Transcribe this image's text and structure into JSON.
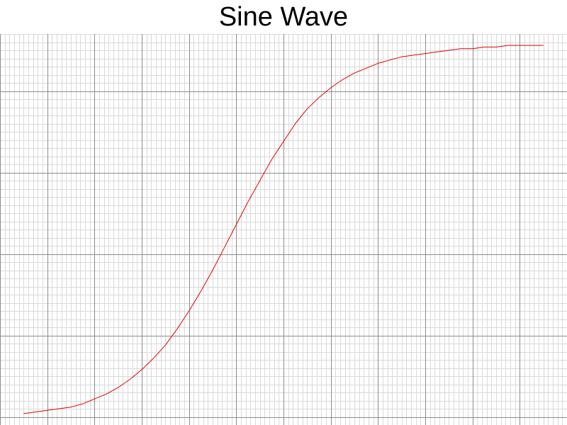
{
  "chart_data": {
    "type": "line",
    "title": "Sine Wave",
    "xlabel": "",
    "ylabel": "",
    "grid": true,
    "xlim": [
      -5,
      7
    ],
    "ylim": [
      -0.55,
      1.85
    ],
    "series": [
      {
        "x": [
          -4.5,
          -4.25,
          -4,
          -3.75,
          -3.5,
          -3.25,
          -3,
          -2.75,
          -2.5,
          -2.25,
          -2,
          -1.75,
          -1.5,
          -1.25,
          -1,
          -0.75,
          -0.5,
          -0.25,
          0,
          0.25,
          0.5,
          0.75,
          1,
          1.25,
          1.5,
          1.75,
          2,
          2.25,
          2.5,
          2.75,
          3,
          3.25,
          3.5,
          3.75,
          4,
          4.25,
          4.5,
          4.75,
          5,
          5.25,
          5.5,
          5.75,
          6,
          6.25,
          6.5
        ],
        "y": [
          -0.48,
          -0.47,
          -0.46,
          -0.45,
          -0.44,
          -0.42,
          -0.39,
          -0.36,
          -0.32,
          -0.27,
          -0.21,
          -0.14,
          -0.06,
          0.04,
          0.15,
          0.27,
          0.4,
          0.54,
          0.68,
          0.82,
          0.95,
          1.08,
          1.19,
          1.3,
          1.39,
          1.46,
          1.52,
          1.57,
          1.61,
          1.64,
          1.67,
          1.69,
          1.71,
          1.72,
          1.73,
          1.74,
          1.75,
          1.76,
          1.76,
          1.77,
          1.77,
          1.78,
          1.78,
          1.78,
          1.78
        ],
        "color": "#e00000"
      }
    ],
    "grid_color_major": "#8c8c8c",
    "grid_color_minor": "#d9d9d9"
  }
}
